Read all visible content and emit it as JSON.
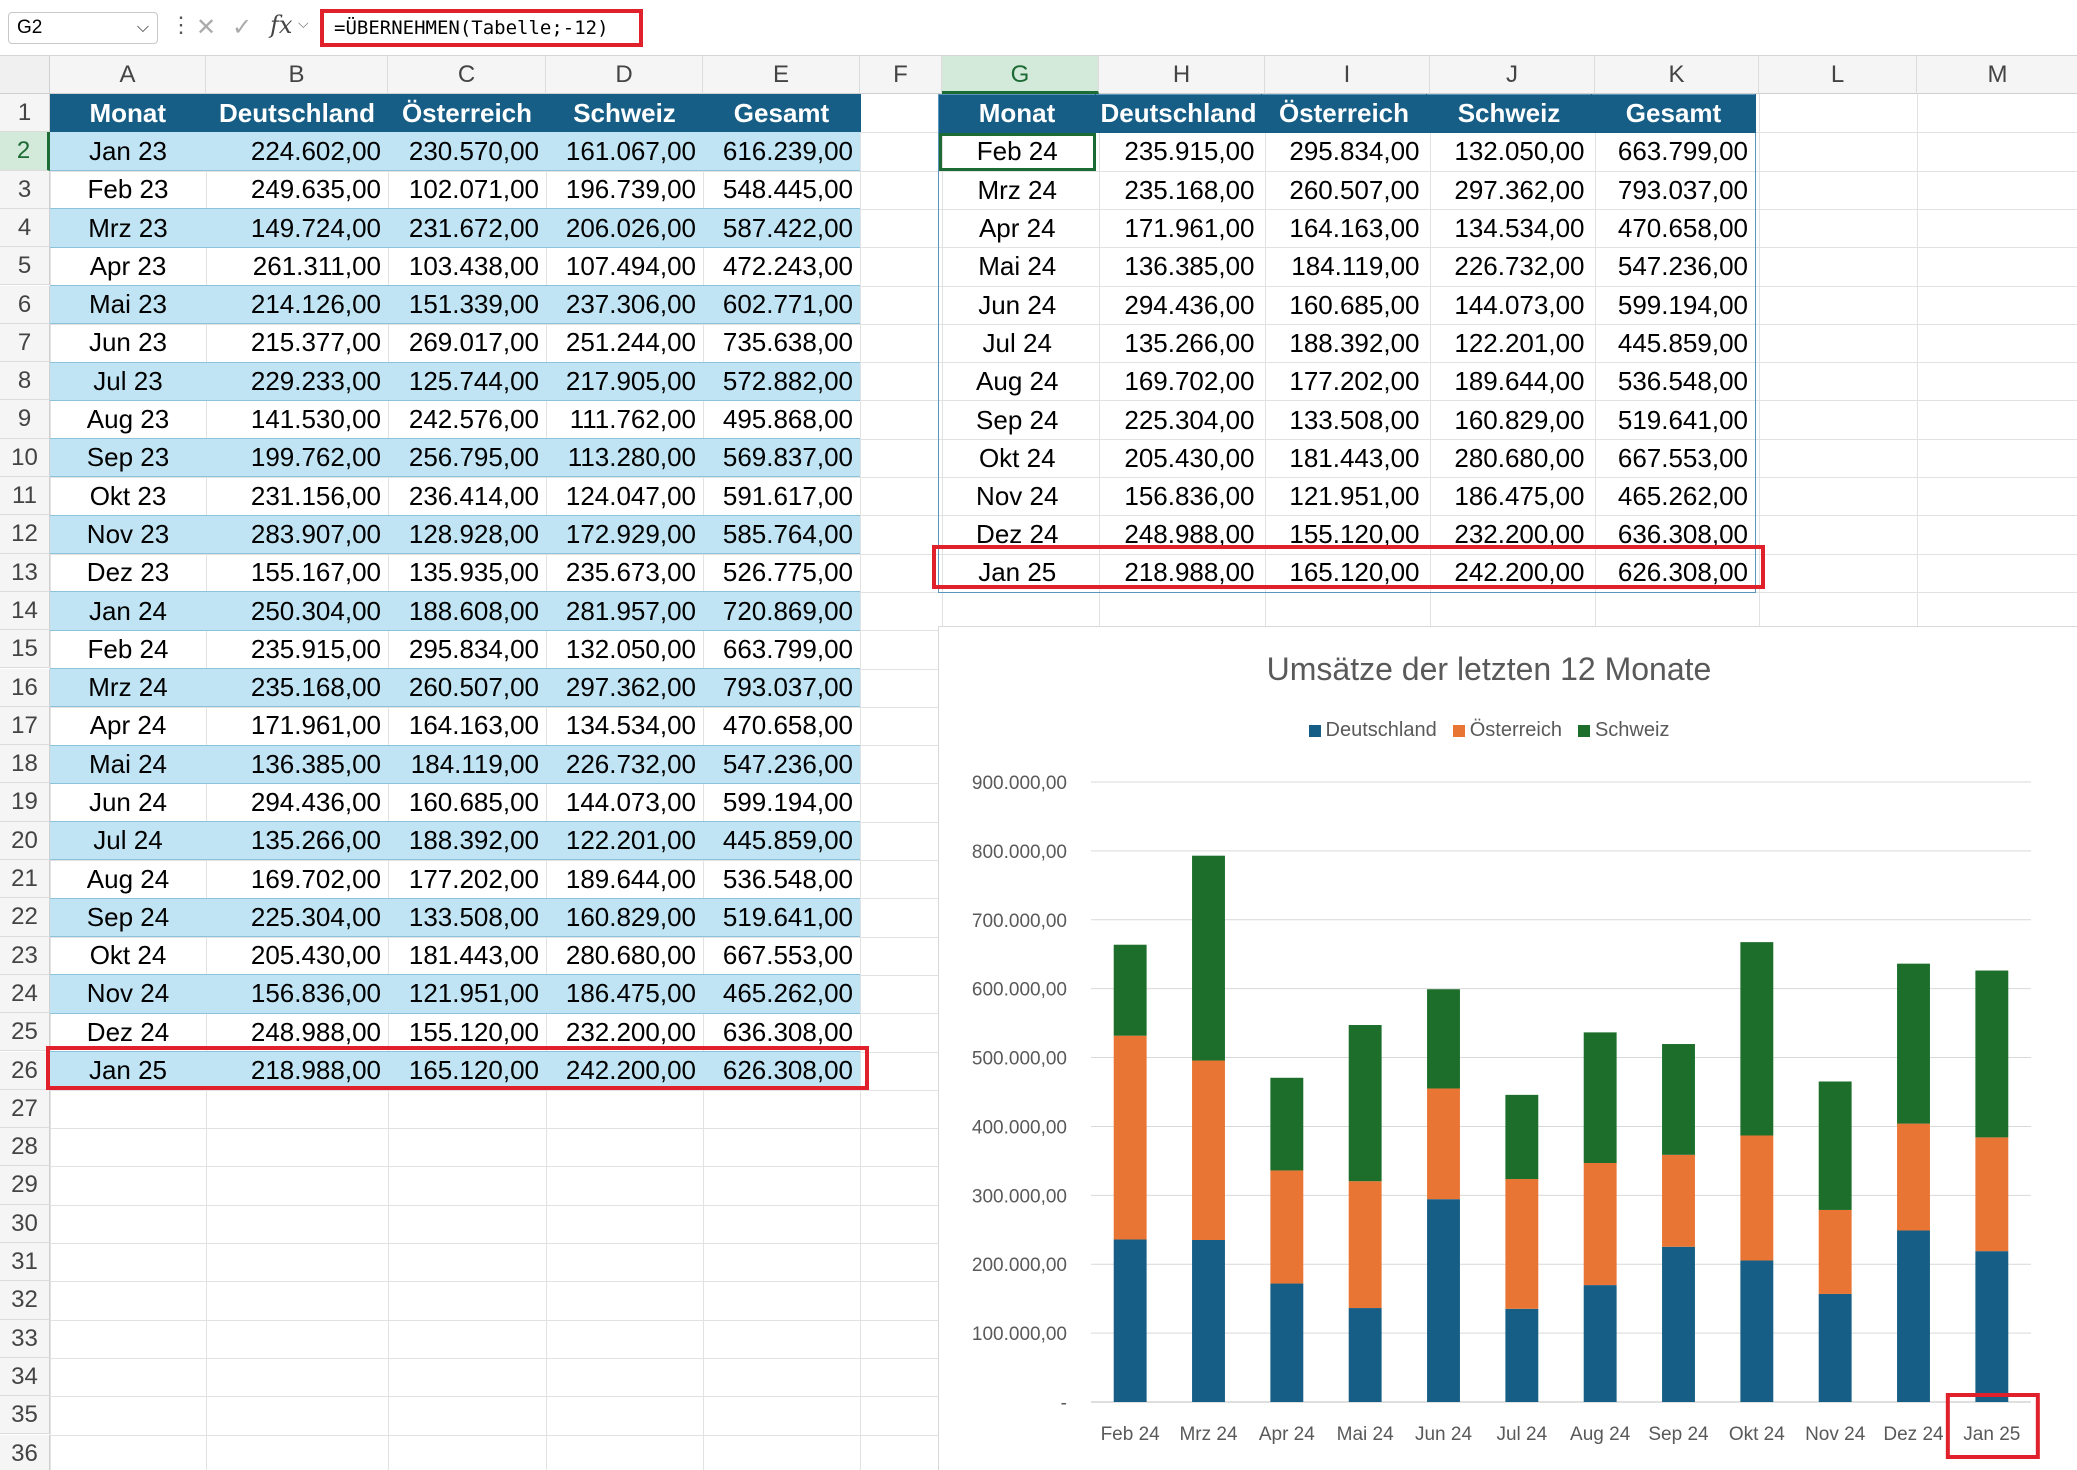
{
  "formula_bar": {
    "name_box": "G2",
    "chevron": "⌵",
    "dots": "⋮",
    "cancel_icon": "✕",
    "enter_icon": "✓",
    "fx": "fx",
    "formula": "=ÜBERNEHMEN(Tabelle;-12)"
  },
  "columns": [
    "A",
    "B",
    "C",
    "D",
    "E",
    "F",
    "G",
    "H",
    "I",
    "J",
    "K",
    "L",
    "M"
  ],
  "selected_column": "G",
  "rows": [
    "1",
    "2",
    "3",
    "4",
    "5",
    "6",
    "7",
    "8",
    "9",
    "10",
    "11",
    "12",
    "13",
    "14",
    "15",
    "16",
    "17",
    "18",
    "19",
    "20",
    "21",
    "22",
    "23",
    "24",
    "25",
    "26",
    "27",
    "28",
    "29",
    "30",
    "31",
    "32",
    "33",
    "34",
    "35",
    "36"
  ],
  "selected_row": "2",
  "table_left": {
    "headers": [
      "Monat",
      "Deutschland",
      "Österreich",
      "Schweiz",
      "Gesamt"
    ],
    "rows": [
      [
        "Jan 23",
        "224.602,00",
        "230.570,00",
        "161.067,00",
        "616.239,00"
      ],
      [
        "Feb 23",
        "249.635,00",
        "102.071,00",
        "196.739,00",
        "548.445,00"
      ],
      [
        "Mrz 23",
        "149.724,00",
        "231.672,00",
        "206.026,00",
        "587.422,00"
      ],
      [
        "Apr 23",
        "261.311,00",
        "103.438,00",
        "107.494,00",
        "472.243,00"
      ],
      [
        "Mai 23",
        "214.126,00",
        "151.339,00",
        "237.306,00",
        "602.771,00"
      ],
      [
        "Jun 23",
        "215.377,00",
        "269.017,00",
        "251.244,00",
        "735.638,00"
      ],
      [
        "Jul 23",
        "229.233,00",
        "125.744,00",
        "217.905,00",
        "572.882,00"
      ],
      [
        "Aug 23",
        "141.530,00",
        "242.576,00",
        "111.762,00",
        "495.868,00"
      ],
      [
        "Sep 23",
        "199.762,00",
        "256.795,00",
        "113.280,00",
        "569.837,00"
      ],
      [
        "Okt 23",
        "231.156,00",
        "236.414,00",
        "124.047,00",
        "591.617,00"
      ],
      [
        "Nov 23",
        "283.907,00",
        "128.928,00",
        "172.929,00",
        "585.764,00"
      ],
      [
        "Dez 23",
        "155.167,00",
        "135.935,00",
        "235.673,00",
        "526.775,00"
      ],
      [
        "Jan 24",
        "250.304,00",
        "188.608,00",
        "281.957,00",
        "720.869,00"
      ],
      [
        "Feb 24",
        "235.915,00",
        "295.834,00",
        "132.050,00",
        "663.799,00"
      ],
      [
        "Mrz 24",
        "235.168,00",
        "260.507,00",
        "297.362,00",
        "793.037,00"
      ],
      [
        "Apr 24",
        "171.961,00",
        "164.163,00",
        "134.534,00",
        "470.658,00"
      ],
      [
        "Mai 24",
        "136.385,00",
        "184.119,00",
        "226.732,00",
        "547.236,00"
      ],
      [
        "Jun 24",
        "294.436,00",
        "160.685,00",
        "144.073,00",
        "599.194,00"
      ],
      [
        "Jul 24",
        "135.266,00",
        "188.392,00",
        "122.201,00",
        "445.859,00"
      ],
      [
        "Aug 24",
        "169.702,00",
        "177.202,00",
        "189.644,00",
        "536.548,00"
      ],
      [
        "Sep 24",
        "225.304,00",
        "133.508,00",
        "160.829,00",
        "519.641,00"
      ],
      [
        "Okt 24",
        "205.430,00",
        "181.443,00",
        "280.680,00",
        "667.553,00"
      ],
      [
        "Nov 24",
        "156.836,00",
        "121.951,00",
        "186.475,00",
        "465.262,00"
      ],
      [
        "Dez 24",
        "248.988,00",
        "155.120,00",
        "232.200,00",
        "636.308,00"
      ],
      [
        "Jan 25",
        "218.988,00",
        "165.120,00",
        "242.200,00",
        "626.308,00"
      ]
    ]
  },
  "table_right": {
    "headers": [
      "Monat",
      "Deutschland",
      "Österreich",
      "Schweiz",
      "Gesamt"
    ],
    "rows": [
      [
        "Feb 24",
        "235.915,00",
        "295.834,00",
        "132.050,00",
        "663.799,00"
      ],
      [
        "Mrz 24",
        "235.168,00",
        "260.507,00",
        "297.362,00",
        "793.037,00"
      ],
      [
        "Apr 24",
        "171.961,00",
        "164.163,00",
        "134.534,00",
        "470.658,00"
      ],
      [
        "Mai 24",
        "136.385,00",
        "184.119,00",
        "226.732,00",
        "547.236,00"
      ],
      [
        "Jun 24",
        "294.436,00",
        "160.685,00",
        "144.073,00",
        "599.194,00"
      ],
      [
        "Jul 24",
        "135.266,00",
        "188.392,00",
        "122.201,00",
        "445.859,00"
      ],
      [
        "Aug 24",
        "169.702,00",
        "177.202,00",
        "189.644,00",
        "536.548,00"
      ],
      [
        "Sep 24",
        "225.304,00",
        "133.508,00",
        "160.829,00",
        "519.641,00"
      ],
      [
        "Okt 24",
        "205.430,00",
        "181.443,00",
        "280.680,00",
        "667.553,00"
      ],
      [
        "Nov 24",
        "156.836,00",
        "121.951,00",
        "186.475,00",
        "465.262,00"
      ],
      [
        "Dez 24",
        "248.988,00",
        "155.120,00",
        "232.200,00",
        "636.308,00"
      ],
      [
        "Jan 25",
        "218.988,00",
        "165.120,00",
        "242.200,00",
        "626.308,00"
      ]
    ]
  },
  "chart_data": {
    "type": "bar",
    "stacked": true,
    "title": "Umsätze der letzten 12 Monate",
    "categories": [
      "Feb 24",
      "Mrz 24",
      "Apr 24",
      "Mai 24",
      "Jun 24",
      "Jul 24",
      "Aug 24",
      "Sep 24",
      "Okt 24",
      "Nov 24",
      "Dez 24",
      "Jan 25"
    ],
    "series": [
      {
        "name": "Deutschland",
        "color": "#175e86",
        "values": [
          235915,
          235168,
          171961,
          136385,
          294436,
          135266,
          169702,
          225304,
          205430,
          156836,
          248988,
          218988
        ]
      },
      {
        "name": "Österreich",
        "color": "#e87533",
        "values": [
          295834,
          260507,
          164163,
          184119,
          160685,
          188392,
          177202,
          133508,
          181443,
          121951,
          155120,
          165120
        ]
      },
      {
        "name": "Schweiz",
        "color": "#1c6e2a",
        "values": [
          132050,
          297362,
          134534,
          226732,
          144073,
          122201,
          189644,
          160829,
          280680,
          186475,
          232200,
          242200
        ]
      }
    ],
    "ylim": [
      0,
      900000
    ],
    "yticks": [
      "-",
      "100.000,00",
      "200.000,00",
      "300.000,00",
      "400.000,00",
      "500.000,00",
      "600.000,00",
      "700.000,00",
      "800.000,00",
      "900.000,00"
    ],
    "grid": true,
    "legend_position": "top",
    "xlabel": "",
    "ylabel": ""
  }
}
